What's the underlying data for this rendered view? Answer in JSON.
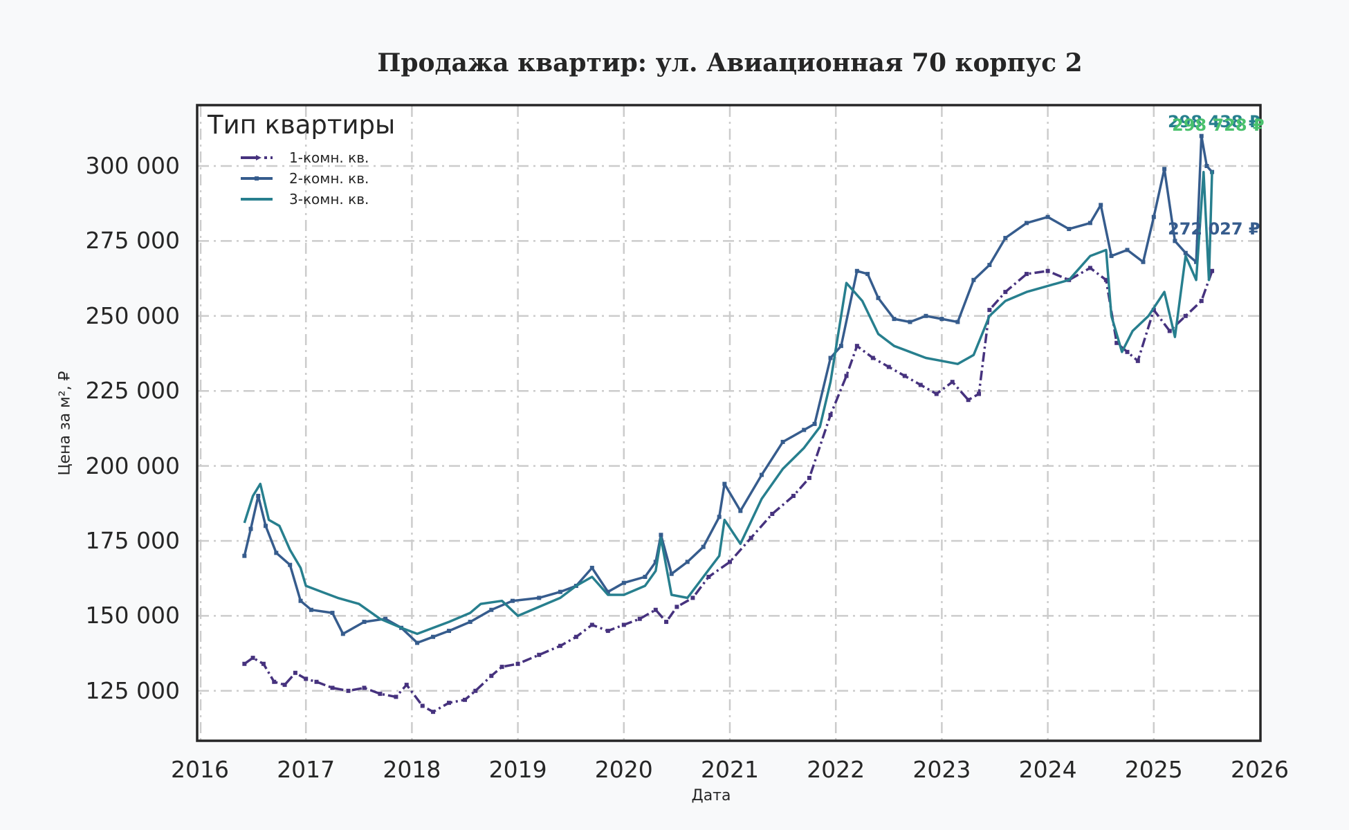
{
  "title": "Продажа квартир: ул. Авиационная 70 корпус 2",
  "axes": {
    "xlabel": "Дата",
    "ylabel": "Цена за м², ₽",
    "xticks": [
      "2016",
      "2017",
      "2018",
      "2019",
      "2020",
      "2021",
      "2022",
      "2023",
      "2024",
      "2025",
      "2026"
    ],
    "yticks": [
      "125 000",
      "150 000",
      "175 000",
      "200 000",
      "225 000",
      "250 000",
      "275 000",
      "300 000"
    ]
  },
  "legend": {
    "title": "Тип квартиры",
    "items": [
      {
        "label": "1-комн. кв.",
        "color": "#46327e",
        "style": "dashdot"
      },
      {
        "label": "2-комн. кв.",
        "color": "#365c8d",
        "style": "solid-marker"
      },
      {
        "label": "3-комн. кв.",
        "color": "#277f8e",
        "style": "solid"
      }
    ]
  },
  "annotations": [
    {
      "text": "298 438 ₽",
      "color": "#277f8e"
    },
    {
      "text": "298 728 ₽",
      "color": "#4ac16d"
    },
    {
      "text": "272 027 ₽",
      "color": "#365c8d"
    }
  ],
  "chart_data": {
    "type": "line",
    "title": "Продажа квартир: ул. Авиационная 70 корпус 2",
    "xlabel": "Дата",
    "ylabel": "Цена за м², ₽",
    "xlim": [
      2016,
      2026
    ],
    "ylim": [
      108000,
      320000
    ],
    "grid": true,
    "legend_position": "upper left",
    "series": [
      {
        "name": "1-комн. кв.",
        "color": "#46327e",
        "x": [
          2016.42,
          2016.5,
          2016.6,
          2016.7,
          2016.8,
          2016.9,
          2017.0,
          2017.1,
          2017.25,
          2017.4,
          2017.55,
          2017.7,
          2017.85,
          2017.95,
          2018.1,
          2018.2,
          2018.35,
          2018.5,
          2018.6,
          2018.75,
          2018.85,
          2019.0,
          2019.2,
          2019.4,
          2019.55,
          2019.7,
          2019.85,
          2020.0,
          2020.15,
          2020.3,
          2020.4,
          2020.5,
          2020.65,
          2020.8,
          2021.0,
          2021.2,
          2021.4,
          2021.6,
          2021.75,
          2021.95,
          2022.1,
          2022.2,
          2022.35,
          2022.5,
          2022.65,
          2022.8,
          2022.95,
          2023.1,
          2023.25,
          2023.35,
          2023.45,
          2023.6,
          2023.8,
          2024.0,
          2024.2,
          2024.4,
          2024.55,
          2024.65,
          2024.75,
          2024.85,
          2025.0,
          2025.15,
          2025.3,
          2025.45,
          2025.55
        ],
        "values": [
          134000,
          136000,
          134000,
          128000,
          127000,
          131000,
          129000,
          128000,
          126000,
          125000,
          126000,
          124000,
          123000,
          127000,
          120000,
          118000,
          121000,
          122000,
          125000,
          130000,
          133000,
          134000,
          137000,
          140000,
          143000,
          147000,
          145000,
          147000,
          149000,
          152000,
          148000,
          153000,
          156000,
          163000,
          168000,
          176000,
          184000,
          190000,
          196000,
          217000,
          230000,
          240000,
          236000,
          233000,
          230000,
          227000,
          224000,
          228000,
          222000,
          224000,
          252000,
          258000,
          264000,
          265000,
          262000,
          266000,
          262000,
          241000,
          238000,
          235000,
          252000,
          245000,
          250000,
          255000,
          265000
        ]
      },
      {
        "name": "2-комн. кв.",
        "color": "#365c8d",
        "x": [
          2016.42,
          2016.48,
          2016.55,
          2016.62,
          2016.72,
          2016.85,
          2016.95,
          2017.05,
          2017.25,
          2017.35,
          2017.55,
          2017.75,
          2017.9,
          2018.05,
          2018.2,
          2018.35,
          2018.55,
          2018.75,
          2018.95,
          2019.2,
          2019.4,
          2019.55,
          2019.7,
          2019.85,
          2020.0,
          2020.2,
          2020.3,
          2020.35,
          2020.45,
          2020.6,
          2020.75,
          2020.9,
          2020.95,
          2021.1,
          2021.3,
          2021.5,
          2021.7,
          2021.8,
          2021.95,
          2022.05,
          2022.2,
          2022.3,
          2022.4,
          2022.55,
          2022.7,
          2022.85,
          2023.0,
          2023.15,
          2023.3,
          2023.45,
          2023.6,
          2023.8,
          2024.0,
          2024.2,
          2024.4,
          2024.5,
          2024.6,
          2024.75,
          2024.9,
          2025.0,
          2025.1,
          2025.2,
          2025.3,
          2025.4,
          2025.45,
          2025.5,
          2025.55
        ],
        "values": [
          170000,
          179000,
          190000,
          180000,
          171000,
          167000,
          155000,
          152000,
          151000,
          144000,
          148000,
          149000,
          146000,
          141000,
          143000,
          145000,
          148000,
          152000,
          155000,
          156000,
          158000,
          160000,
          166000,
          158000,
          161000,
          163000,
          168000,
          177000,
          164000,
          168000,
          173000,
          183000,
          194000,
          185000,
          197000,
          208000,
          212000,
          214000,
          236000,
          240000,
          265000,
          264000,
          256000,
          249000,
          248000,
          250000,
          249000,
          248000,
          262000,
          267000,
          276000,
          281000,
          283000,
          279000,
          281000,
          287000,
          270000,
          272000,
          268000,
          283000,
          299000,
          275000,
          271000,
          268000,
          310000,
          300000,
          298000
        ]
      },
      {
        "name": "3-комн. кв.",
        "color": "#277f8e",
        "x": [
          2016.42,
          2016.5,
          2016.57,
          2016.65,
          2016.75,
          2016.85,
          2016.95,
          2017.0,
          2017.15,
          2017.3,
          2017.5,
          2017.7,
          2017.9,
          2018.05,
          2018.2,
          2018.35,
          2018.55,
          2018.65,
          2018.85,
          2019.0,
          2019.2,
          2019.4,
          2019.55,
          2019.7,
          2019.85,
          2020.0,
          2020.2,
          2020.3,
          2020.35,
          2020.45,
          2020.6,
          2020.75,
          2020.9,
          2020.95,
          2021.1,
          2021.3,
          2021.5,
          2021.7,
          2021.85,
          2021.95,
          2022.1,
          2022.25,
          2022.4,
          2022.55,
          2022.7,
          2022.85,
          2023.0,
          2023.15,
          2023.3,
          2023.45,
          2023.6,
          2023.8,
          2024.0,
          2024.2,
          2024.4,
          2024.55,
          2024.6,
          2024.7,
          2024.8,
          2024.95,
          2025.1,
          2025.2,
          2025.3,
          2025.4,
          2025.47,
          2025.52,
          2025.55
        ],
        "values": [
          181000,
          190000,
          194000,
          182000,
          180000,
          172000,
          166000,
          160000,
          158000,
          156000,
          154000,
          149000,
          146000,
          144000,
          146000,
          148000,
          151000,
          154000,
          155000,
          150000,
          153000,
          156000,
          160000,
          163000,
          157000,
          157000,
          160000,
          165000,
          176000,
          157000,
          156000,
          163000,
          170000,
          182000,
          174000,
          189000,
          199000,
          206000,
          213000,
          228000,
          261000,
          255000,
          244000,
          240000,
          238000,
          236000,
          235000,
          234000,
          237000,
          250000,
          255000,
          258000,
          260000,
          262000,
          270000,
          272000,
          250000,
          238000,
          245000,
          250000,
          258000,
          243000,
          270000,
          262000,
          298000,
          262000,
          298438
        ]
      }
    ],
    "annotations": [
      {
        "text": "298 438 ₽",
        "series": "3-комн. кв."
      },
      {
        "text": "298 728 ₽",
        "series": "additional (green)"
      },
      {
        "text": "272 027 ₽",
        "series": "2-комн. кв."
      }
    ]
  }
}
